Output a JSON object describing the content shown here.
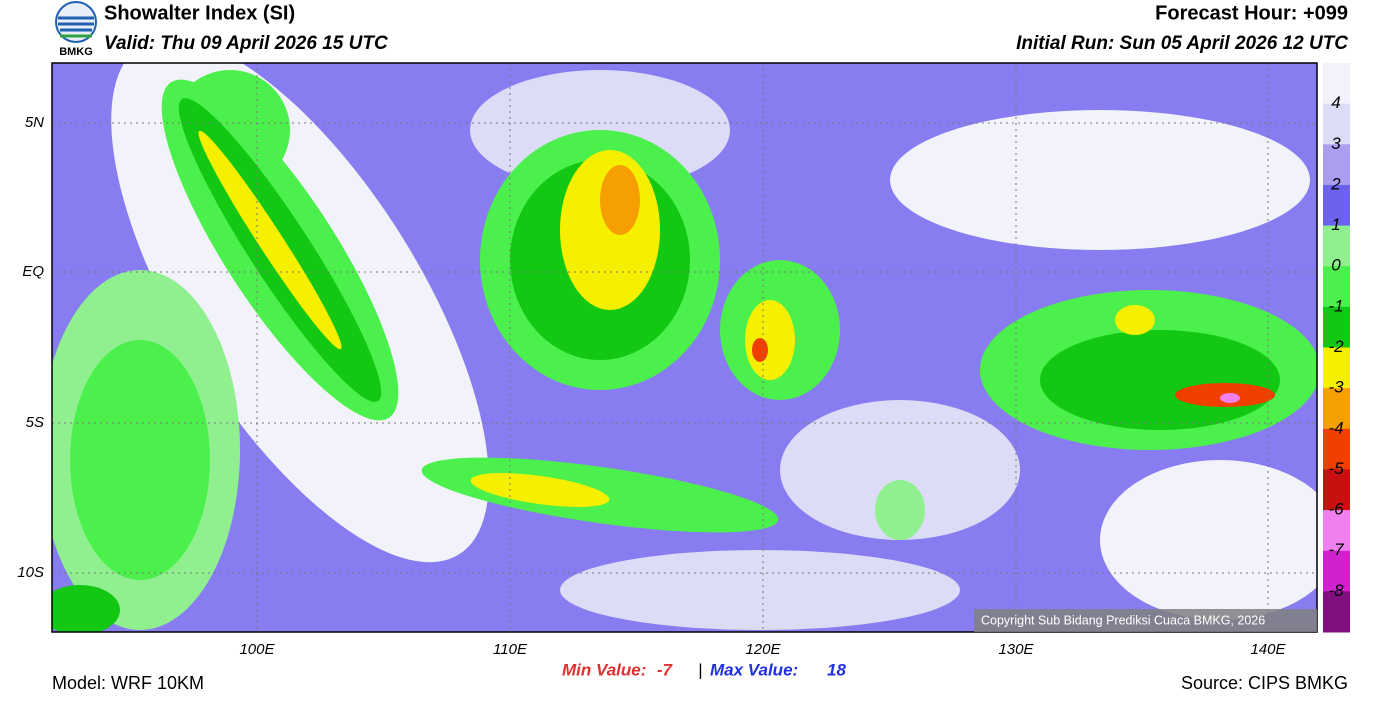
{
  "header": {
    "logo": "BMKG",
    "title": "Showalter Index (SI)",
    "valid": "Valid: Thu 09 April 2026 15 UTC",
    "forecast_hour": "Forecast Hour: +099",
    "initial_run": "Initial Run: Sun 05 April 2026 12 UTC"
  },
  "map": {
    "lat_labels": [
      "5N",
      "EQ",
      "5S",
      "10S"
    ],
    "lon_labels": [
      "100E",
      "110E",
      "120E",
      "130E",
      "140E"
    ],
    "copyright": "Copyright Sub Bidang Prediksi Cuaca BMKG, 2026"
  },
  "colorbar": {
    "labels": [
      4,
      3,
      2,
      1,
      0,
      -1,
      -2,
      -3,
      -4,
      -5,
      -6,
      -7,
      -8
    ],
    "colors": [
      "#f2f2fa",
      "#dcdcf6",
      "#a99ef0",
      "#6b62f0",
      "#90f090",
      "#4cf04c",
      "#12c812",
      "#f6f000",
      "#f5a000",
      "#f04000",
      "#c81010",
      "#f080f0",
      "#d020d0",
      "#801080"
    ]
  },
  "footer": {
    "model": "Model: WRF 10KM",
    "min_label": "Min Value:",
    "min_value": -7,
    "separator": "|",
    "max_label": "Max Value:",
    "max_value": 18,
    "source": "Source: CIPS BMKG"
  }
}
